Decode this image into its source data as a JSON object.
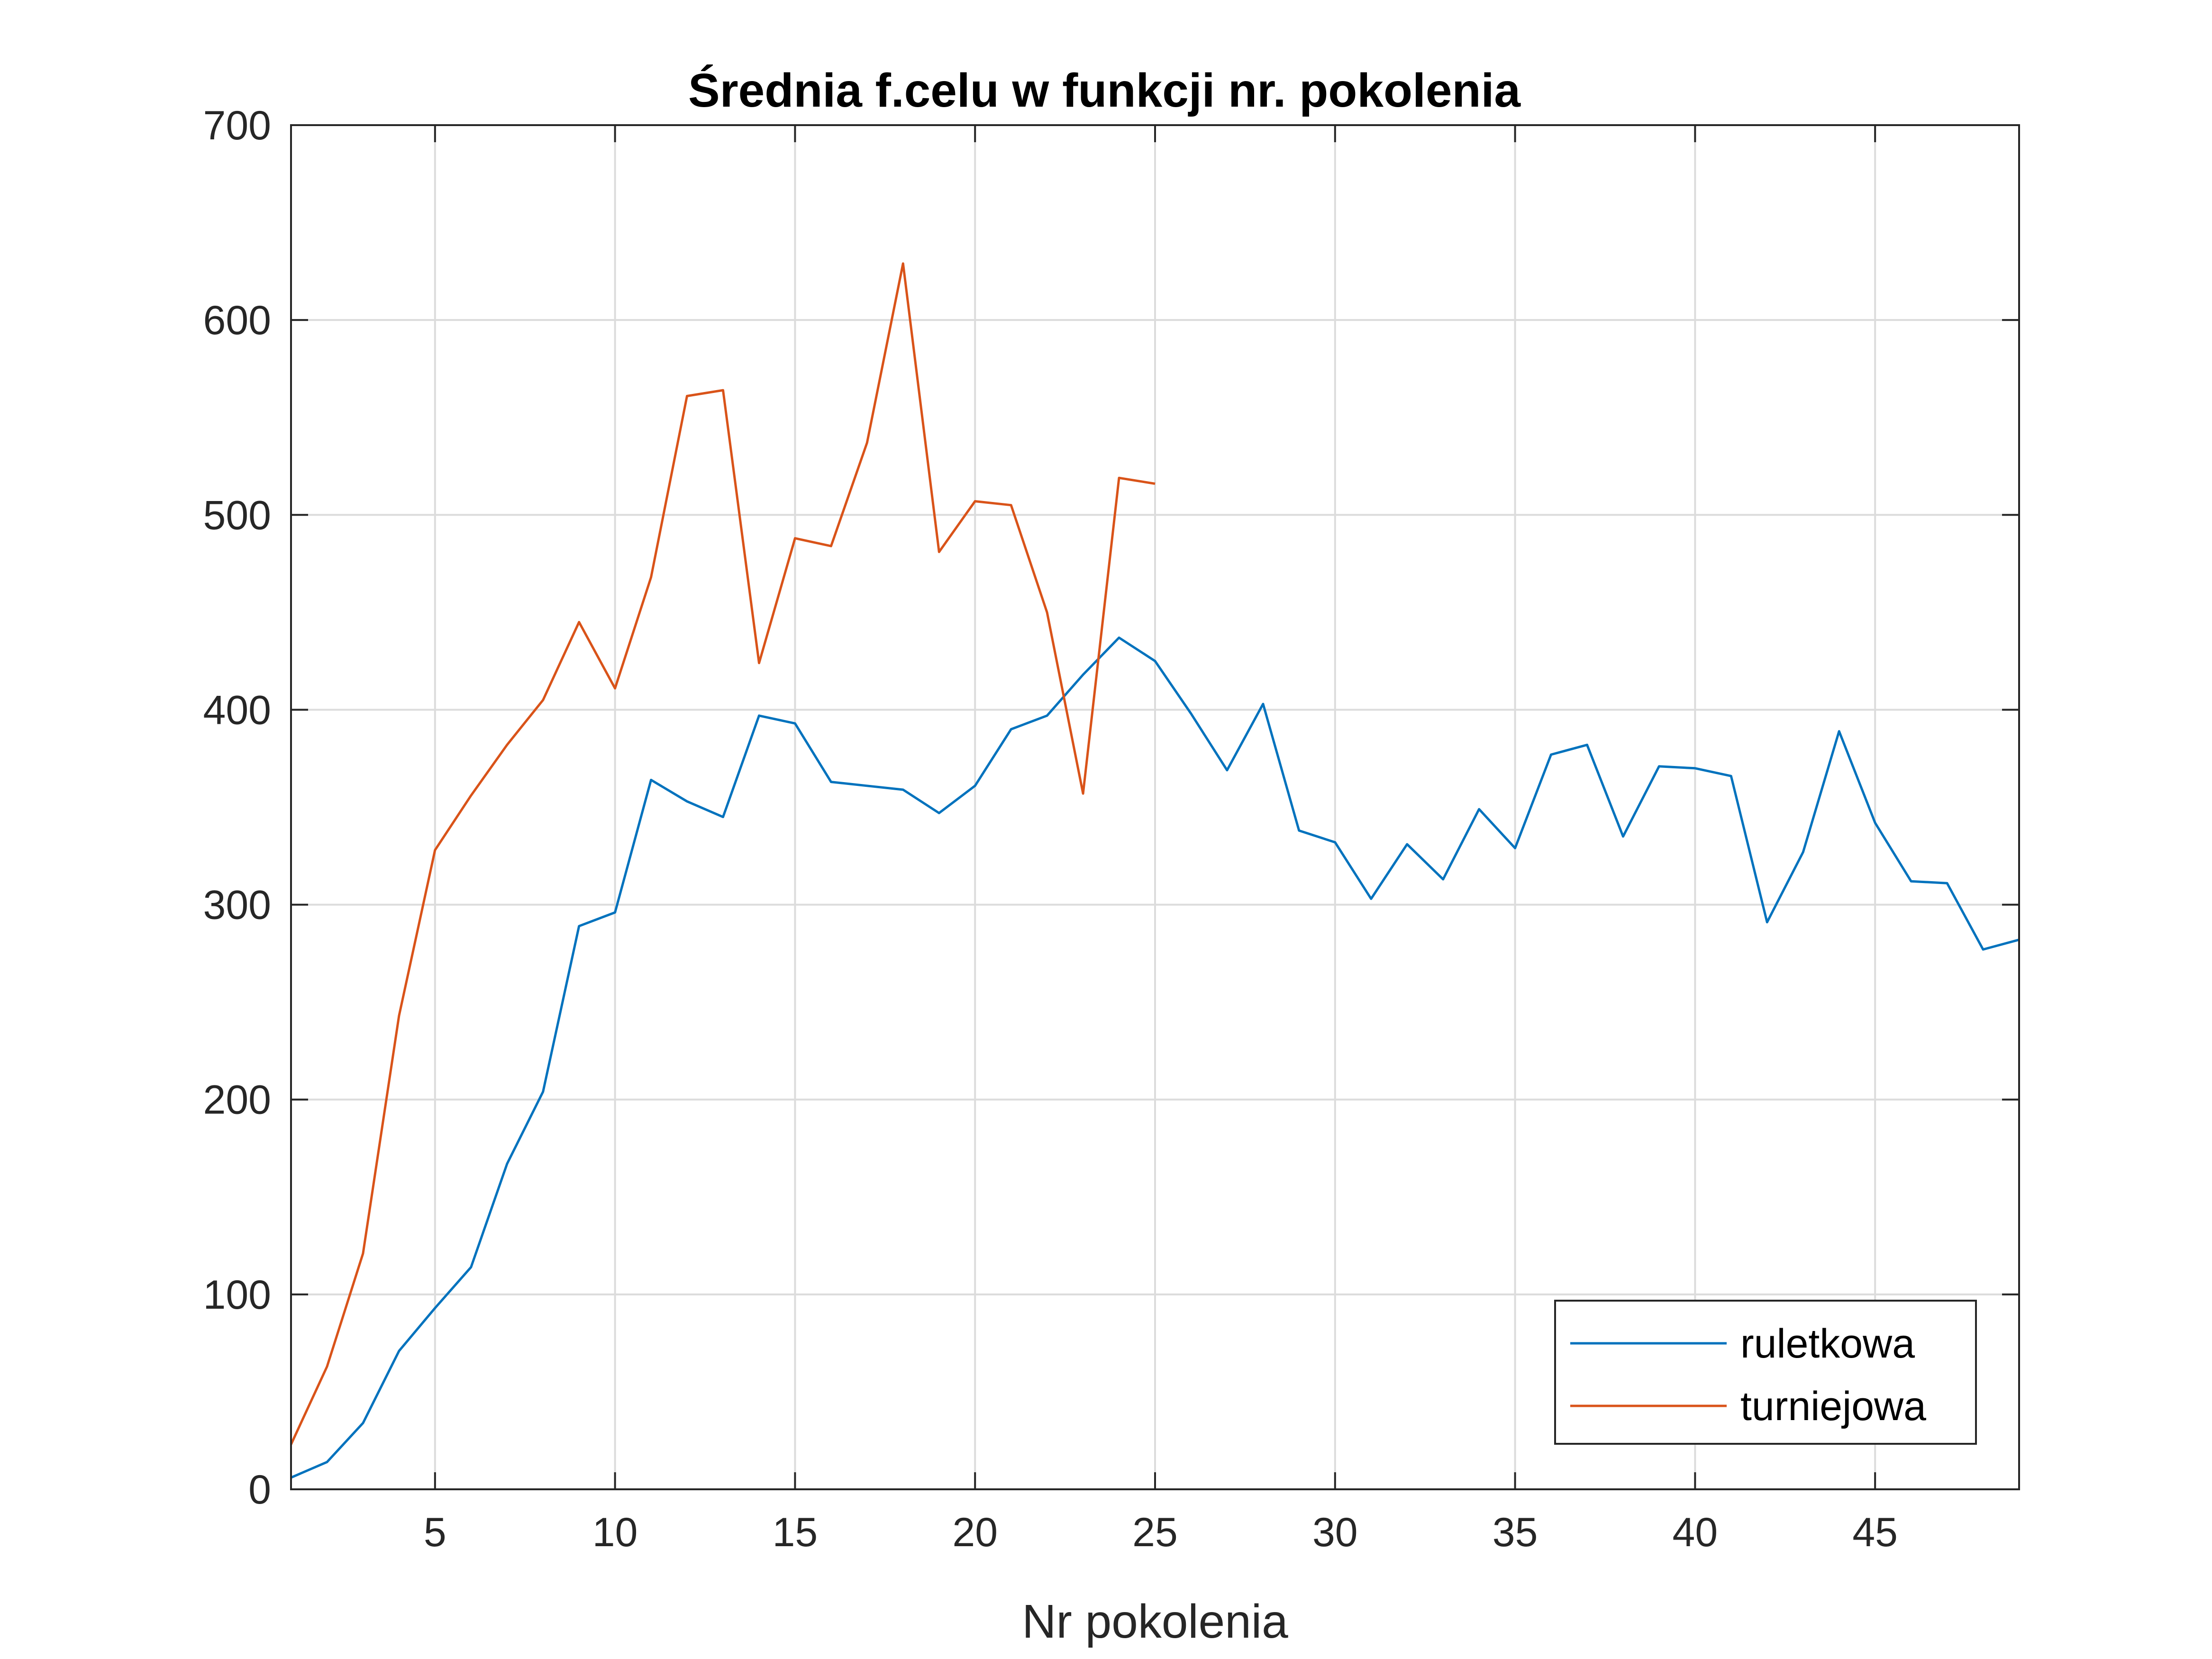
{
  "chart_data": {
    "type": "line",
    "title": "Średnia f.celu w funkcji nr. pokolenia",
    "xlabel": "Nr pokolenia",
    "ylabel": "",
    "xlim": [
      1,
      49
    ],
    "ylim": [
      0,
      700
    ],
    "xticks": [
      5,
      10,
      15,
      20,
      25,
      30,
      35,
      40,
      45
    ],
    "yticks": [
      0,
      100,
      200,
      300,
      400,
      500,
      600,
      700
    ],
    "grid": true,
    "legend_position": "bottom-right",
    "series": [
      {
        "name": "ruletkowa",
        "color": "#0072BD",
        "x": [
          1,
          2,
          3,
          4,
          5,
          6,
          7,
          8,
          9,
          10,
          11,
          12,
          13,
          14,
          15,
          16,
          17,
          18,
          19,
          20,
          21,
          22,
          23,
          24,
          25,
          26,
          27,
          28,
          29,
          30,
          31,
          32,
          33,
          34,
          35,
          36,
          37,
          38,
          39,
          40,
          41,
          42,
          43,
          44,
          45,
          46,
          47,
          48,
          49
        ],
        "y": [
          6,
          14,
          34,
          71,
          93,
          114,
          167,
          204,
          289,
          296,
          364,
          353,
          345,
          397,
          393,
          363,
          361,
          359,
          347,
          361,
          390,
          397,
          418,
          437,
          425,
          398,
          369,
          403,
          338,
          332,
          303,
          331,
          313,
          349,
          329,
          377,
          382,
          335,
          371,
          370,
          366,
          291,
          327,
          389,
          342,
          312,
          311,
          277,
          282
        ]
      },
      {
        "name": "turniejowa",
        "color": "#D95319",
        "x": [
          1,
          2,
          3,
          4,
          5,
          6,
          7,
          8,
          9,
          10,
          11,
          12,
          13,
          14,
          15,
          16,
          17,
          18,
          19,
          20,
          21,
          22,
          23,
          24,
          25
        ],
        "y": [
          23,
          63,
          121,
          243,
          328,
          356,
          382,
          405,
          445,
          411,
          468,
          561,
          564,
          424,
          488,
          484,
          537,
          629,
          481,
          507,
          505,
          450,
          357,
          519,
          516
        ]
      }
    ]
  }
}
